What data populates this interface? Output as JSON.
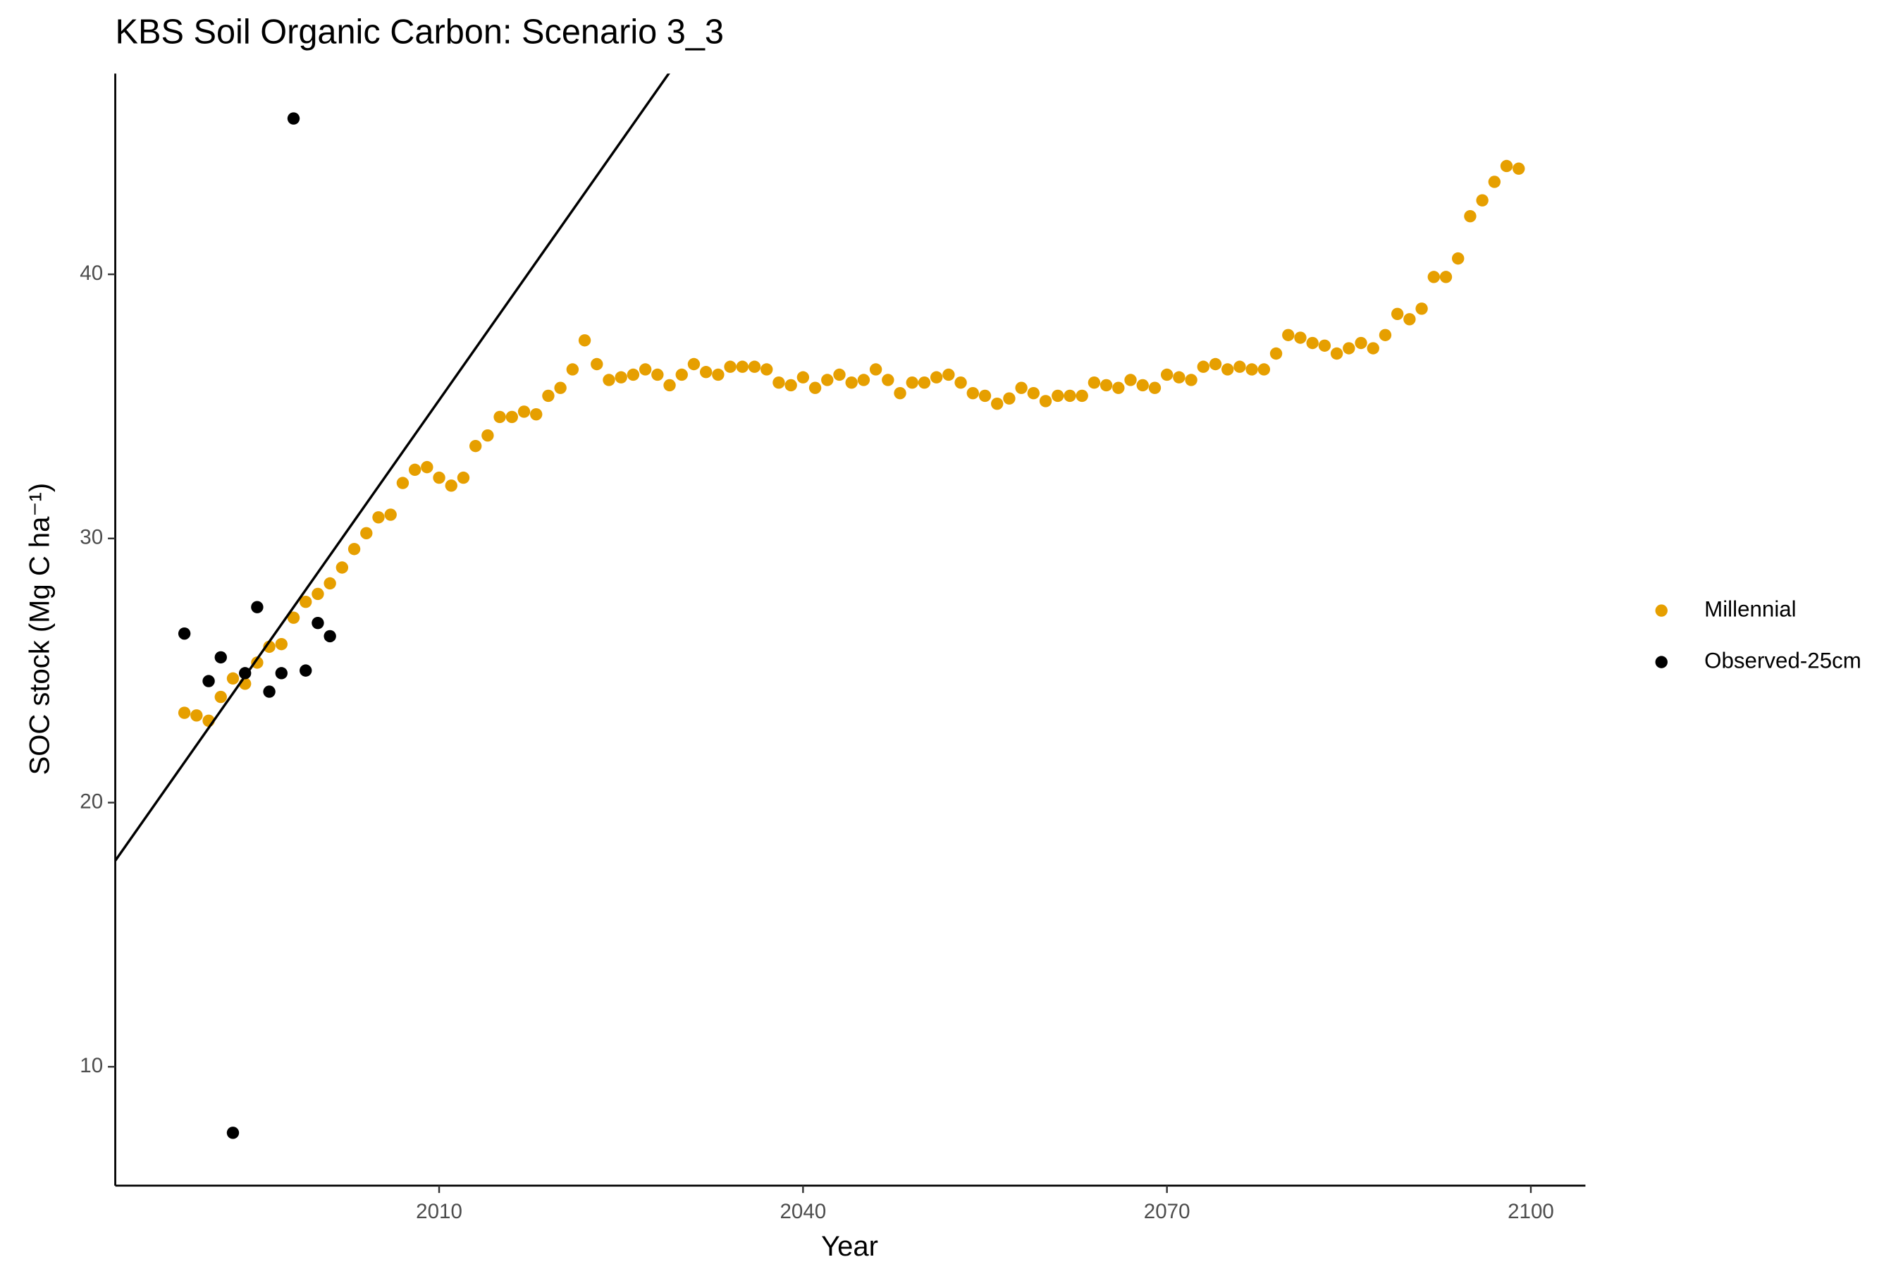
{
  "chart_data": {
    "type": "scatter",
    "title": "KBS Soil Organic Carbon: Scenario  3_3",
    "xlabel": "Year",
    "ylabel": "SOC stock (Mg C ha⁻¹)",
    "xlim": [
      1983.3,
      2104.5
    ],
    "ylim": [
      5.5,
      47.6
    ],
    "xticks": [
      2010,
      2040,
      2070,
      2100
    ],
    "yticks": [
      10,
      20,
      30,
      40
    ],
    "grid": false,
    "legend": "right",
    "series": [
      {
        "name": "Millennial",
        "color": "#E69F00",
        "mode": "points",
        "x": [
          1989,
          1990,
          1991,
          1992,
          1993,
          1994,
          1995,
          1996,
          1997,
          1998,
          1999,
          2000,
          2001,
          2002,
          2003,
          2004,
          2005,
          2006,
          2007,
          2008,
          2009,
          2010,
          2011,
          2012,
          2013,
          2014,
          2015,
          2016,
          2017,
          2018,
          2019,
          2020,
          2021,
          2022,
          2023,
          2024,
          2025,
          2026,
          2027,
          2028,
          2029,
          2030,
          2031,
          2032,
          2033,
          2034,
          2035,
          2036,
          2037,
          2038,
          2039,
          2040,
          2041,
          2042,
          2043,
          2044,
          2045,
          2046,
          2047,
          2048,
          2049,
          2050,
          2051,
          2052,
          2053,
          2054,
          2055,
          2056,
          2057,
          2058,
          2059,
          2060,
          2061,
          2062,
          2063,
          2064,
          2065,
          2066,
          2067,
          2068,
          2069,
          2070,
          2071,
          2072,
          2073,
          2074,
          2075,
          2076,
          2077,
          2078,
          2079,
          2080,
          2081,
          2082,
          2083,
          2084,
          2085,
          2086,
          2087,
          2088,
          2089,
          2090,
          2091,
          2092,
          2093,
          2094,
          2095,
          2096,
          2097,
          2098,
          2099
        ],
        "values": [
          23.4,
          23.3,
          23.1,
          24.0,
          24.7,
          24.5,
          25.3,
          25.9,
          26.0,
          27.0,
          27.6,
          27.9,
          28.3,
          28.9,
          29.6,
          30.2,
          30.8,
          30.9,
          32.1,
          32.6,
          32.7,
          32.3,
          32.0,
          32.3,
          33.5,
          33.9,
          34.6,
          34.6,
          34.8,
          34.7,
          35.4,
          35.7,
          36.4,
          37.5,
          36.6,
          36.0,
          36.1,
          36.2,
          36.4,
          36.2,
          35.8,
          36.2,
          36.6,
          36.3,
          36.2,
          36.5,
          36.5,
          36.5,
          36.4,
          35.9,
          35.8,
          36.1,
          35.7,
          36.0,
          36.2,
          35.9,
          36.0,
          36.4,
          36.0,
          35.5,
          35.9,
          35.9,
          36.1,
          36.2,
          35.9,
          35.5,
          35.4,
          35.1,
          35.3,
          35.7,
          35.5,
          35.2,
          35.4,
          35.4,
          35.4,
          35.9,
          35.8,
          35.7,
          36.0,
          35.8,
          35.7,
          36.2,
          36.1,
          36.0,
          36.5,
          36.6,
          36.4,
          36.5,
          36.4,
          36.4,
          37.0,
          37.7,
          37.6,
          37.4,
          37.3,
          37.0,
          37.2,
          37.4,
          37.2,
          37.7,
          38.5,
          38.3,
          38.7,
          39.9,
          39.9,
          40.6,
          42.2,
          42.8,
          43.5,
          44.1,
          44.0
        ]
      },
      {
        "name": "Observed-25cm",
        "color": "#000000",
        "mode": "points",
        "x": [
          1989,
          1991,
          1992,
          1993,
          1994,
          1995,
          1996,
          1997,
          1998,
          1999,
          2000,
          2001
        ],
        "values": [
          26.4,
          24.6,
          25.5,
          7.5,
          24.9,
          27.4,
          24.2,
          24.9,
          45.9,
          25.0,
          26.8,
          26.3
        ]
      },
      {
        "color": "#000000",
        "mode": "line",
        "x": [
          1983.3,
          2030
        ],
        "values": [
          17.8,
          48.3
        ]
      }
    ]
  }
}
